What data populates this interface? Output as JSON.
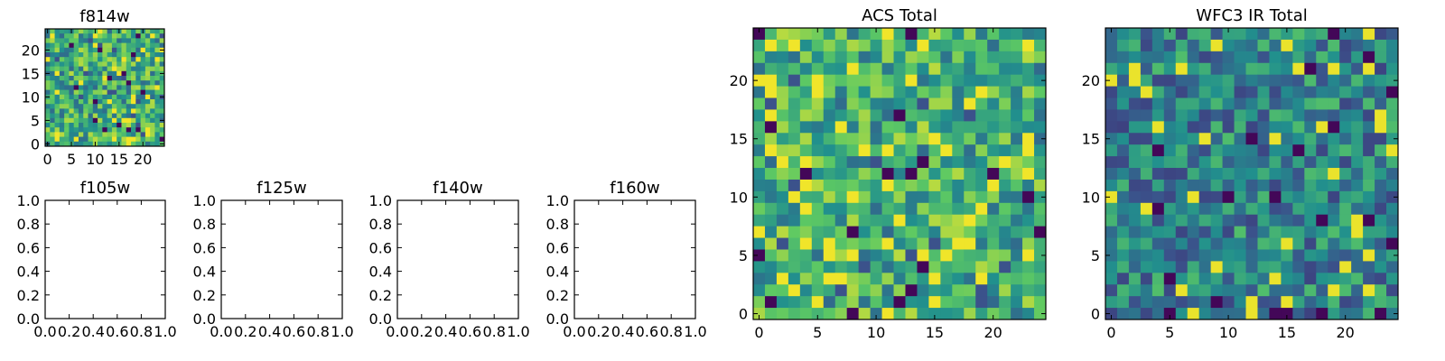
{
  "figure": {
    "background": "#ffffff",
    "axis_color": "#000000",
    "colormap": [
      "#440154",
      "#3b528b",
      "#21908d",
      "#5dc963",
      "#fde725"
    ]
  },
  "chart_data": [
    {
      "id": "f814w",
      "type": "heatmap",
      "title": "f814w",
      "xlabel": "",
      "ylabel": "",
      "size": 25,
      "xlim": [
        -0.5,
        24.5
      ],
      "ylim": [
        -0.5,
        24.5
      ],
      "xticks": [
        0,
        5,
        10,
        15,
        20
      ],
      "xtick_labels": [
        "0",
        "5",
        "10",
        "15",
        "20"
      ],
      "yticks": [
        0,
        5,
        10,
        15,
        20
      ],
      "ytick_labels": [
        "0",
        "5",
        "10",
        "15",
        "20"
      ],
      "value_range": [
        0,
        1
      ],
      "seed": 814,
      "note": "25x25 noise image; pixel values are random 0-1 (individual values not legible)"
    },
    {
      "id": "f105w",
      "type": "empty",
      "title": "f105w",
      "xlim": [
        0,
        1
      ],
      "ylim": [
        0,
        1
      ],
      "xticks": [
        0,
        0.2,
        0.4,
        0.6,
        0.8,
        1.0
      ],
      "xtick_labels": [
        "0.0",
        "0.2",
        "0.4",
        "0.6",
        "0.8",
        "1.0"
      ],
      "yticks": [
        0,
        0.2,
        0.4,
        0.6,
        0.8,
        1.0
      ],
      "ytick_labels": [
        "0.0",
        "0.2",
        "0.4",
        "0.6",
        "0.8",
        "1.0"
      ]
    },
    {
      "id": "f125w",
      "type": "empty",
      "title": "f125w",
      "xlim": [
        0,
        1
      ],
      "ylim": [
        0,
        1
      ],
      "xticks": [
        0,
        0.2,
        0.4,
        0.6,
        0.8,
        1.0
      ],
      "xtick_labels": [
        "0.0",
        "0.2",
        "0.4",
        "0.6",
        "0.8",
        "1.0"
      ],
      "yticks": [
        0,
        0.2,
        0.4,
        0.6,
        0.8,
        1.0
      ],
      "ytick_labels": [
        "0.0",
        "0.2",
        "0.4",
        "0.6",
        "0.8",
        "1.0"
      ]
    },
    {
      "id": "f140w",
      "type": "empty",
      "title": "f140w",
      "xlim": [
        0,
        1
      ],
      "ylim": [
        0,
        1
      ],
      "xticks": [
        0,
        0.2,
        0.4,
        0.6,
        0.8,
        1.0
      ],
      "xtick_labels": [
        "0.0",
        "0.2",
        "0.4",
        "0.6",
        "0.8",
        "1.0"
      ],
      "yticks": [
        0,
        0.2,
        0.4,
        0.6,
        0.8,
        1.0
      ],
      "ytick_labels": [
        "0.0",
        "0.2",
        "0.4",
        "0.6",
        "0.8",
        "1.0"
      ]
    },
    {
      "id": "f160w",
      "type": "empty",
      "title": "f160w",
      "xlim": [
        0,
        1
      ],
      "ylim": [
        0,
        1
      ],
      "xticks": [
        0,
        0.2,
        0.4,
        0.6,
        0.8,
        1.0
      ],
      "xtick_labels": [
        "0.0",
        "0.2",
        "0.4",
        "0.6",
        "0.8",
        "1.0"
      ],
      "yticks": [
        0,
        0.2,
        0.4,
        0.6,
        0.8,
        1.0
      ],
      "ytick_labels": [
        "0.0",
        "0.2",
        "0.4",
        "0.6",
        "0.8",
        "1.0"
      ]
    },
    {
      "id": "acs-total",
      "type": "heatmap",
      "title": "ACS Total",
      "size": 25,
      "xlim": [
        -0.5,
        24.5
      ],
      "ylim": [
        -0.5,
        24.5
      ],
      "xticks": [
        0,
        5,
        10,
        15,
        20
      ],
      "xtick_labels": [
        "0",
        "5",
        "10",
        "15",
        "20"
      ],
      "yticks": [
        0,
        5,
        10,
        15,
        20
      ],
      "ytick_labels": [
        "0",
        "5",
        "10",
        "15",
        "20"
      ],
      "value_range": [
        0,
        1
      ],
      "seed": 2024,
      "note": "25x25 noise image, predominantly green-yellow with a few dark purple pixels"
    },
    {
      "id": "wfc3-ir-total",
      "type": "heatmap",
      "title": "WFC3 IR Total",
      "size": 25,
      "xlim": [
        -0.5,
        24.5
      ],
      "ylim": [
        -0.5,
        24.5
      ],
      "xticks": [
        0,
        5,
        10,
        15,
        20
      ],
      "xtick_labels": [
        "0",
        "5",
        "10",
        "15",
        "20"
      ],
      "yticks": [
        0,
        5,
        10,
        15,
        20
      ],
      "ytick_labels": [
        "0",
        "5",
        "10",
        "15",
        "20"
      ],
      "value_range": [
        0,
        1
      ],
      "seed": 3131,
      "note": "25x25 noise image, teal-green dominant with scattered purple and yellow pixels"
    }
  ]
}
